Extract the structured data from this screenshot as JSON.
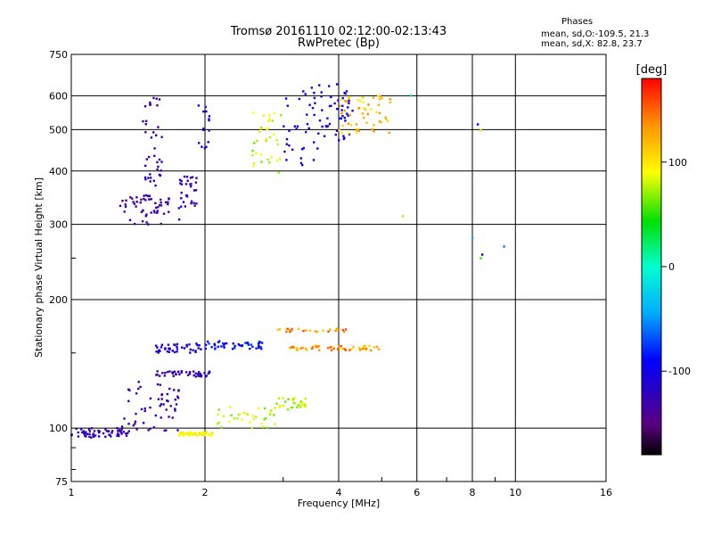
{
  "header": {
    "title_line1": "Tromsø 20161110 02:12:00-02:13:43",
    "title_line2": "RwPretec (Bp)",
    "phases_title": "Phases",
    "phases_o": "mean, sd,O:-109.5, 21.3",
    "phases_x": "mean, sd,X:  82.8, 23.7"
  },
  "chart_data": {
    "type": "scatter",
    "xlabel": "Frequency [MHz]",
    "ylabel": "Stationary phase Virtual Height [km]",
    "x_scale": "log",
    "y_scale": "log",
    "xlim": [
      1,
      16
    ],
    "ylim": [
      75,
      750
    ],
    "x_ticks": [
      1,
      2,
      4,
      6,
      8,
      10,
      16
    ],
    "x_tick_labels": [
      "1",
      "2",
      "4",
      "6",
      "8",
      "10",
      "16"
    ],
    "y_ticks": [
      75,
      100,
      200,
      300,
      400,
      500,
      600,
      750
    ],
    "y_tick_labels": [
      "75",
      "100",
      "200",
      "300",
      "400",
      "500",
      "600",
      "750"
    ],
    "grid": true,
    "colorbar": {
      "label": "[deg]",
      "range": [
        -180,
        180
      ],
      "tick_values": [
        100,
        0,
        -100
      ],
      "tick_labels": [
        "100",
        "0",
        "-100"
      ]
    },
    "clusters": [
      {
        "x": [
          1.0,
          1.35
        ],
        "y": [
          95,
          100
        ],
        "n": 60,
        "phase": [
          -140,
          -110
        ]
      },
      {
        "x": [
          1.3,
          1.75
        ],
        "y": [
          98,
          130
        ],
        "n": 55,
        "phase": [
          -150,
          -110
        ]
      },
      {
        "x": [
          1.55,
          1.95
        ],
        "y": [
          150,
          158
        ],
        "n": 40,
        "phase": [
          -130,
          -95
        ]
      },
      {
        "x": [
          1.55,
          2.05
        ],
        "y": [
          132,
          136
        ],
        "n": 45,
        "phase": [
          -140,
          -110
        ]
      },
      {
        "x": [
          1.95,
          2.75
        ],
        "y": [
          153,
          160
        ],
        "n": 45,
        "phase": [
          -110,
          -70
        ]
      },
      {
        "x": [
          1.75,
          2.1
        ],
        "y": [
          96,
          98
        ],
        "n": 50,
        "phase": [
          85,
          105
        ]
      },
      {
        "x": [
          2.1,
          2.9
        ],
        "y": [
          100,
          112
        ],
        "n": 35,
        "phase": [
          60,
          95
        ]
      },
      {
        "x": [
          2.9,
          3.4
        ],
        "y": [
          110,
          118
        ],
        "n": 30,
        "phase": [
          60,
          100
        ]
      },
      {
        "x": [
          3.1,
          5.0
        ],
        "y": [
          152,
          156
        ],
        "n": 55,
        "phase": [
          100,
          160
        ]
      },
      {
        "x": [
          2.9,
          4.2
        ],
        "y": [
          168,
          171
        ],
        "n": 25,
        "phase": [
          110,
          160
        ]
      },
      {
        "x": [
          1.28,
          1.75
        ],
        "y": [
          300,
          350
        ],
        "n": 45,
        "phase": [
          -150,
          -115
        ]
      },
      {
        "x": [
          1.45,
          1.6
        ],
        "y": [
          320,
          610
        ],
        "n": 50,
        "phase": [
          -140,
          -110
        ]
      },
      {
        "x": [
          1.75,
          1.92
        ],
        "y": [
          330,
          390
        ],
        "n": 30,
        "phase": [
          -140,
          -110
        ]
      },
      {
        "x": [
          1.92,
          2.05
        ],
        "y": [
          450,
          600
        ],
        "n": 15,
        "phase": [
          -120,
          -100
        ]
      },
      {
        "x": [
          2.55,
          3.0
        ],
        "y": [
          395,
          550
        ],
        "n": 35,
        "phase": [
          60,
          100
        ]
      },
      {
        "x": [
          3.0,
          3.6
        ],
        "y": [
          410,
          630
        ],
        "n": 35,
        "phase": [
          -120,
          -90
        ]
      },
      {
        "x": [
          3.6,
          4.3
        ],
        "y": [
          470,
          640
        ],
        "n": 45,
        "phase": [
          -120,
          -90
        ]
      },
      {
        "x": [
          4.0,
          5.3
        ],
        "y": [
          490,
          600
        ],
        "n": 55,
        "phase": [
          90,
          140
        ]
      },
      {
        "x": [
          5.3,
          9.5
        ],
        "y": [
          240,
          620
        ],
        "n": 8,
        "phase": [
          -100,
          160
        ]
      }
    ]
  }
}
